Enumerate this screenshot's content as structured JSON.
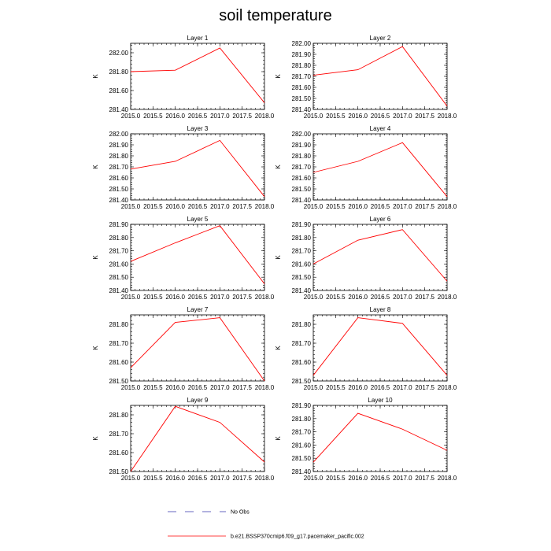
{
  "chart_data": {
    "type": "line",
    "title": "soil temperature",
    "ylabel": "K",
    "x": [
      2015.0,
      2016.0,
      2017.0,
      2018.0
    ],
    "x_range": [
      2015.0,
      2018.0
    ],
    "x_ticks": [
      "2015.0",
      "2015.5",
      "2016.0",
      "2016.5",
      "2017.0",
      "2017.5",
      "2018.0"
    ],
    "line_color": "#ff0000",
    "panels": [
      {
        "title": "Layer 1",
        "ylim": [
          281.4,
          282.1
        ],
        "y_ticks": [
          "281.40",
          "281.60",
          "281.80",
          "282.00"
        ],
        "values": [
          281.8,
          281.815,
          282.05,
          281.47
        ]
      },
      {
        "title": "Layer 2",
        "ylim": [
          281.4,
          282.0
        ],
        "y_ticks": [
          "281.40",
          "281.50",
          "281.60",
          "281.70",
          "281.80",
          "281.90",
          "282.00"
        ],
        "values": [
          281.71,
          281.76,
          281.97,
          281.43
        ]
      },
      {
        "title": "Layer 3",
        "ylim": [
          281.4,
          282.0
        ],
        "y_ticks": [
          "281.40",
          "281.50",
          "281.60",
          "281.70",
          "281.80",
          "281.90",
          "282.00"
        ],
        "values": [
          281.68,
          281.75,
          281.94,
          281.43
        ]
      },
      {
        "title": "Layer 4",
        "ylim": [
          281.4,
          282.0
        ],
        "y_ticks": [
          "281.40",
          "281.50",
          "281.60",
          "281.70",
          "281.80",
          "281.90",
          "282.00"
        ],
        "values": [
          281.65,
          281.75,
          281.92,
          281.43
        ]
      },
      {
        "title": "Layer 5",
        "ylim": [
          281.4,
          281.9
        ],
        "y_ticks": [
          "281.40",
          "281.50",
          "281.60",
          "281.70",
          "281.80",
          "281.90"
        ],
        "values": [
          281.62,
          281.76,
          281.89,
          281.45
        ]
      },
      {
        "title": "Layer 6",
        "ylim": [
          281.4,
          281.9
        ],
        "y_ticks": [
          "281.40",
          "281.50",
          "281.60",
          "281.70",
          "281.80",
          "281.90"
        ],
        "values": [
          281.6,
          281.78,
          281.86,
          281.47
        ]
      },
      {
        "title": "Layer 7",
        "ylim": [
          281.5,
          281.85
        ],
        "y_ticks": [
          "281.50",
          "281.60",
          "281.70",
          "281.80"
        ],
        "values": [
          281.57,
          281.81,
          281.835,
          281.5
        ]
      },
      {
        "title": "Layer 8",
        "ylim": [
          281.5,
          281.85
        ],
        "y_ticks": [
          "281.50",
          "281.60",
          "281.70",
          "281.80"
        ],
        "values": [
          281.53,
          281.835,
          281.805,
          281.53
        ]
      },
      {
        "title": "Layer 9",
        "ylim": [
          281.5,
          281.85
        ],
        "y_ticks": [
          "281.50",
          "281.60",
          "281.70",
          "281.80"
        ],
        "values": [
          281.5,
          281.845,
          281.76,
          281.55
        ]
      },
      {
        "title": "Layer 10",
        "ylim": [
          281.4,
          281.9
        ],
        "y_ticks": [
          "281.40",
          "281.50",
          "281.60",
          "281.70",
          "281.80",
          "281.90"
        ],
        "values": [
          281.47,
          281.84,
          281.72,
          281.56
        ]
      }
    ],
    "legend": [
      {
        "label": "No Obs",
        "style": "dashed",
        "color": "#3333aa"
      },
      {
        "label": "b.e21.BSSP370cmip6.f09_g17.pacemaker_pacific.002",
        "style": "solid",
        "color": "#ff0000"
      }
    ]
  }
}
